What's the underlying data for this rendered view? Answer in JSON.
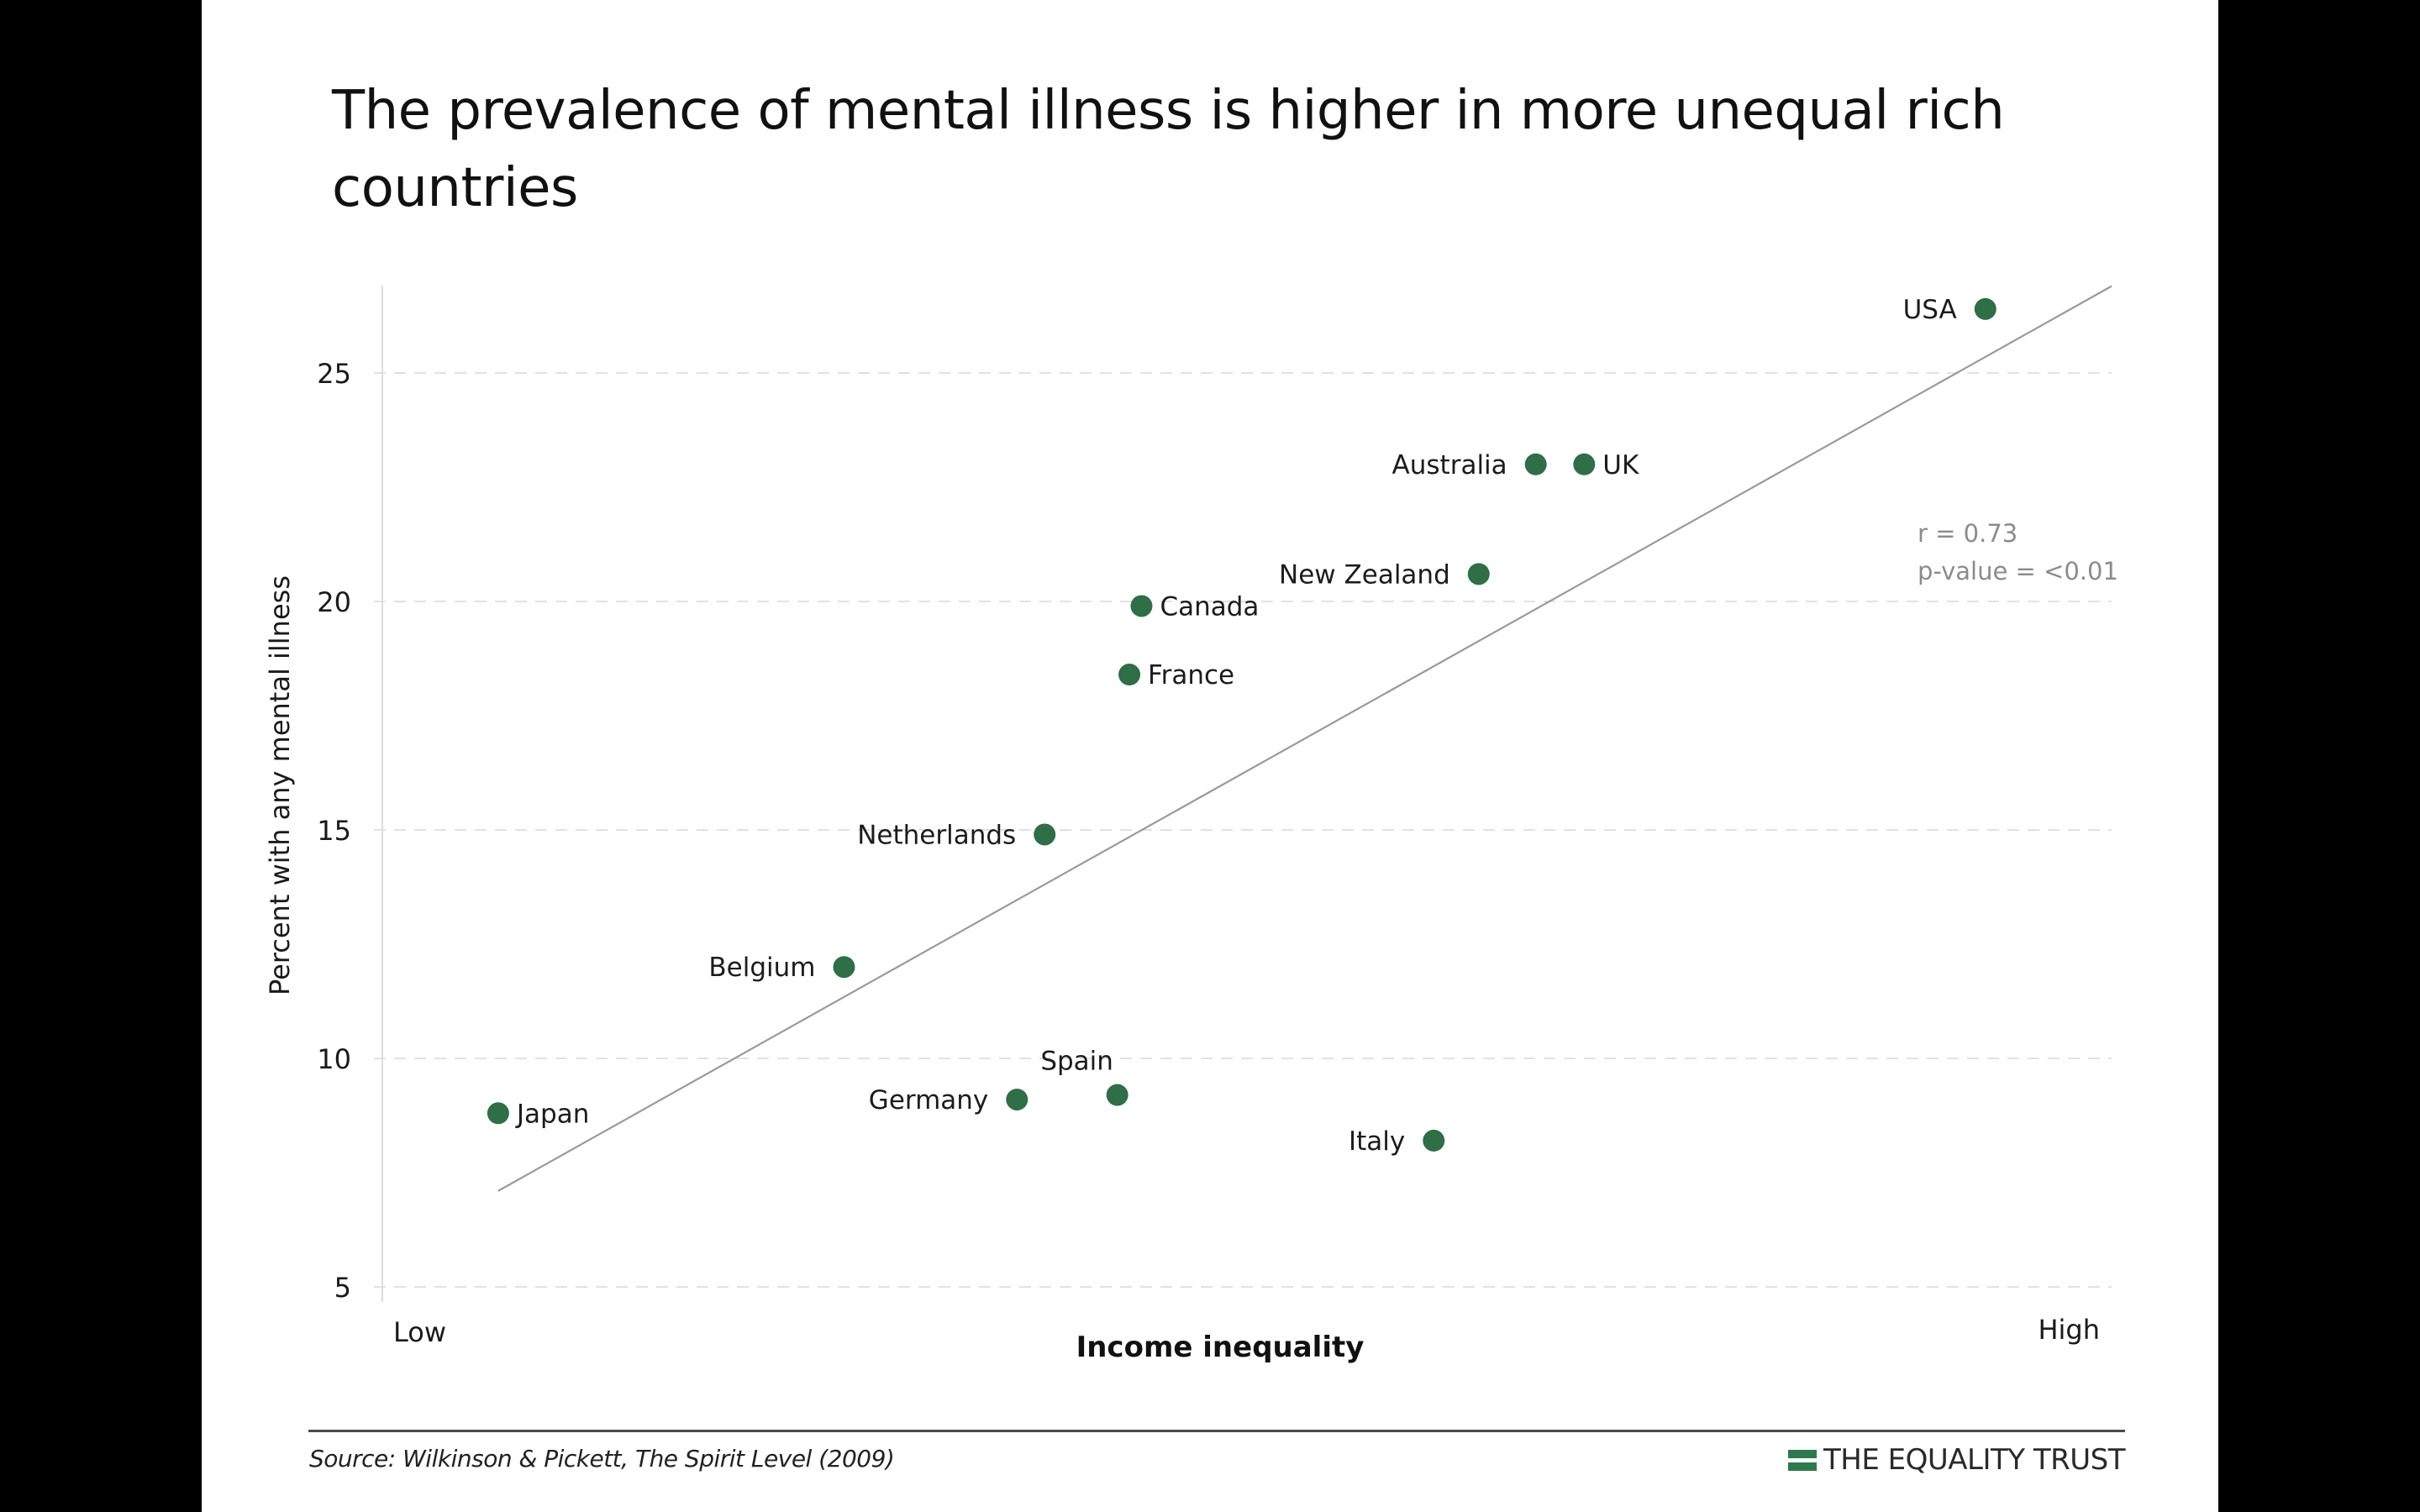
{
  "colors": {
    "point": "#2f6e46",
    "trendline": "#9a9a9a",
    "gridline": "#e2e2e2",
    "axis": "#dcdcdc",
    "stat_text": "#8c8c8c",
    "logo_green": "#2f7a4c"
  },
  "slide": {
    "title": "The prevalence of mental illness is higher in more unequal rich countries",
    "source": "Source: Wilkinson & Pickett, The Spirit Level (2009)",
    "logo_text": "THE EQUALITY TRUST",
    "logo_icon": "equals-sign-icon"
  },
  "chart_data": {
    "type": "scatter",
    "title": "The prevalence of mental illness is higher in more unequal rich countries",
    "xlabel": "Income inequality",
    "ylabel": "Percent with any mental illness",
    "x_axis_note": "x values are relative positions on an unlabelled inequality scale (0 = Low, 100 = High)",
    "x_endpoint_labels": {
      "low": "Low",
      "high": "High"
    },
    "xlim": [
      0,
      100
    ],
    "ylim": [
      5,
      27
    ],
    "y_ticks": [
      5,
      10,
      15,
      20,
      25
    ],
    "y_tick_labels": [
      "5",
      "10",
      "15",
      "20",
      "25"
    ],
    "grid": "horizontal dashed",
    "points": [
      {
        "label": "USA",
        "x": 92.7,
        "y": 26.4,
        "label_side": "left"
      },
      {
        "label": "Australia",
        "x": 66.7,
        "y": 23.0,
        "label_side": "left"
      },
      {
        "label": "UK",
        "x": 69.5,
        "y": 23.0,
        "label_side": "right"
      },
      {
        "label": "New Zealand",
        "x": 63.4,
        "y": 20.6,
        "label_side": "left"
      },
      {
        "label": "Canada",
        "x": 43.9,
        "y": 19.9,
        "label_side": "right"
      },
      {
        "label": "France",
        "x": 43.2,
        "y": 18.4,
        "label_side": "right"
      },
      {
        "label": "Netherlands",
        "x": 38.3,
        "y": 14.9,
        "label_side": "left"
      },
      {
        "label": "Belgium",
        "x": 26.7,
        "y": 12.0,
        "label_side": "left"
      },
      {
        "label": "Spain",
        "x": 42.5,
        "y": 9.2,
        "label_side": "above"
      },
      {
        "label": "Germany",
        "x": 36.7,
        "y": 9.1,
        "label_side": "left"
      },
      {
        "label": "Japan",
        "x": 6.7,
        "y": 8.8,
        "label_side": "right"
      },
      {
        "label": "Italy",
        "x": 60.8,
        "y": 8.2,
        "label_side": "left"
      }
    ],
    "trendline": {
      "x": [
        6.7,
        100
      ],
      "y": [
        7.1,
        26.9
      ]
    },
    "annotations": {
      "r": "r = 0.73",
      "p": "p-value = <0.01"
    }
  }
}
